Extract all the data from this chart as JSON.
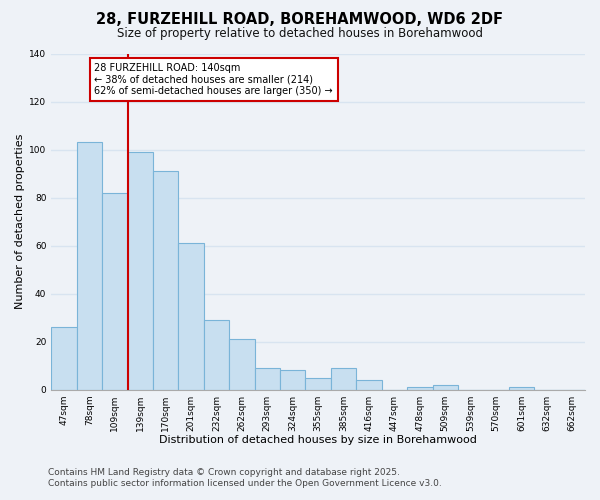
{
  "title": "28, FURZEHILL ROAD, BOREHAMWOOD, WD6 2DF",
  "subtitle": "Size of property relative to detached houses in Borehamwood",
  "xlabel": "Distribution of detached houses by size in Borehamwood",
  "ylabel": "Number of detached properties",
  "bar_color": "#c8dff0",
  "bar_edge_color": "#7ab4d8",
  "categories": [
    "47sqm",
    "78sqm",
    "109sqm",
    "139sqm",
    "170sqm",
    "201sqm",
    "232sqm",
    "262sqm",
    "293sqm",
    "324sqm",
    "355sqm",
    "385sqm",
    "416sqm",
    "447sqm",
    "478sqm",
    "509sqm",
    "539sqm",
    "570sqm",
    "601sqm",
    "632sqm",
    "662sqm"
  ],
  "values": [
    26,
    103,
    82,
    99,
    91,
    61,
    29,
    21,
    9,
    8,
    5,
    9,
    4,
    0,
    1,
    2,
    0,
    0,
    1,
    0,
    0
  ],
  "ylim": [
    0,
    140
  ],
  "yticks": [
    0,
    20,
    40,
    60,
    80,
    100,
    120,
    140
  ],
  "red_line_index": 3,
  "annotation_title": "28 FURZEHILL ROAD: 140sqm",
  "annotation_line1": "← 38% of detached houses are smaller (214)",
  "annotation_line2": "62% of semi-detached houses are larger (350) →",
  "annotation_box_color": "#ffffff",
  "annotation_box_edge": "#cc0000",
  "footer1": "Contains HM Land Registry data © Crown copyright and database right 2025.",
  "footer2": "Contains public sector information licensed under the Open Government Licence v3.0.",
  "background_color": "#eef2f7",
  "grid_color": "#d8e4f0",
  "title_fontsize": 10.5,
  "subtitle_fontsize": 8.5,
  "axis_label_fontsize": 8,
  "tick_fontsize": 6.5,
  "annotation_fontsize": 7,
  "footer_fontsize": 6.5
}
